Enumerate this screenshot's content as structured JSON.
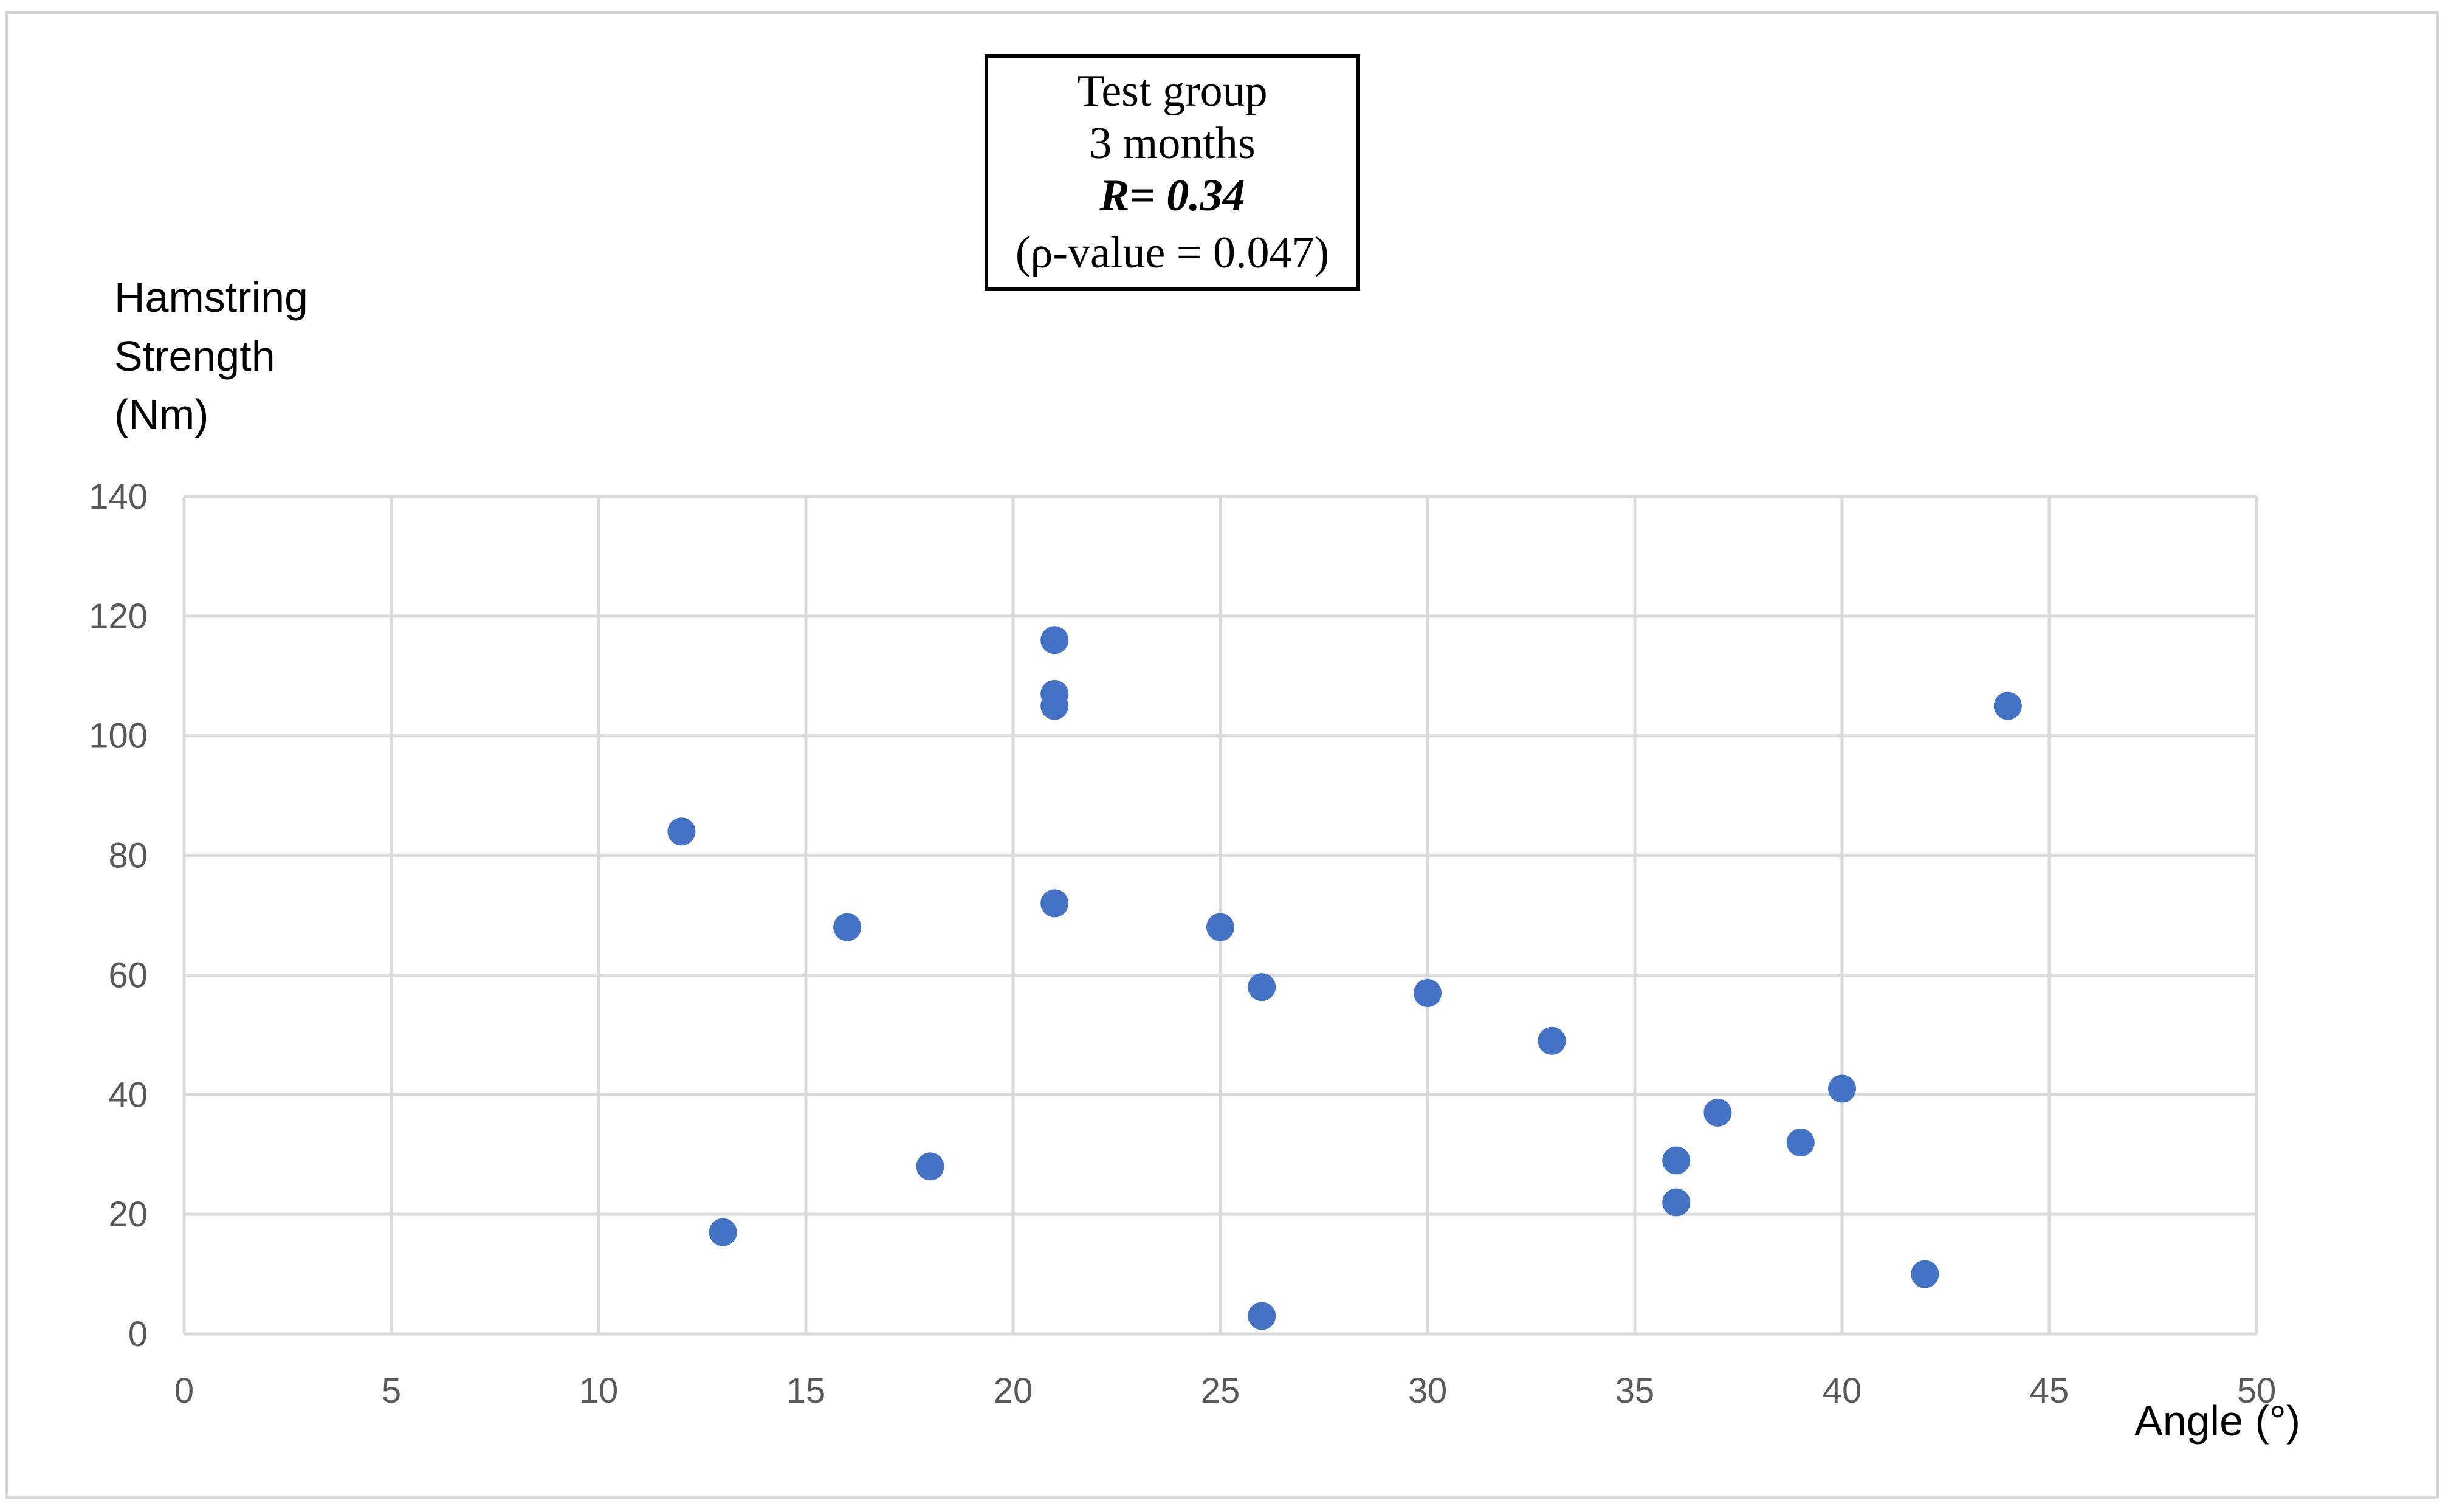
{
  "chart_data": {
    "type": "scatter",
    "annotation": {
      "lines": [
        "Test group",
        "3 months",
        "R= 0.34",
        "(ρ-value = 0.047)"
      ]
    },
    "ylabel_lines": [
      "Hamstring",
      "Strength",
      "(Nm)"
    ],
    "xlabel": "Angle (°)",
    "xlim": [
      0,
      50
    ],
    "ylim": [
      0,
      140
    ],
    "xticks": [
      0,
      5,
      10,
      15,
      20,
      25,
      30,
      35,
      40,
      45,
      50
    ],
    "yticks": [
      0,
      20,
      40,
      60,
      80,
      100,
      120,
      140
    ],
    "grid": true,
    "marker_color": "#4472c4",
    "grid_color": "#d9d9d9",
    "points": [
      {
        "x": 12,
        "y": 84
      },
      {
        "x": 13,
        "y": 17
      },
      {
        "x": 16,
        "y": 68
      },
      {
        "x": 18,
        "y": 28
      },
      {
        "x": 21,
        "y": 116
      },
      {
        "x": 21,
        "y": 107
      },
      {
        "x": 21,
        "y": 105
      },
      {
        "x": 21,
        "y": 72
      },
      {
        "x": 25,
        "y": 68
      },
      {
        "x": 26,
        "y": 58
      },
      {
        "x": 26,
        "y": 3
      },
      {
        "x": 30,
        "y": 57
      },
      {
        "x": 33,
        "y": 49
      },
      {
        "x": 36,
        "y": 29
      },
      {
        "x": 36,
        "y": 22
      },
      {
        "x": 37,
        "y": 37
      },
      {
        "x": 39,
        "y": 32
      },
      {
        "x": 40,
        "y": 41
      },
      {
        "x": 42,
        "y": 10
      },
      {
        "x": 44,
        "y": 105
      }
    ]
  }
}
